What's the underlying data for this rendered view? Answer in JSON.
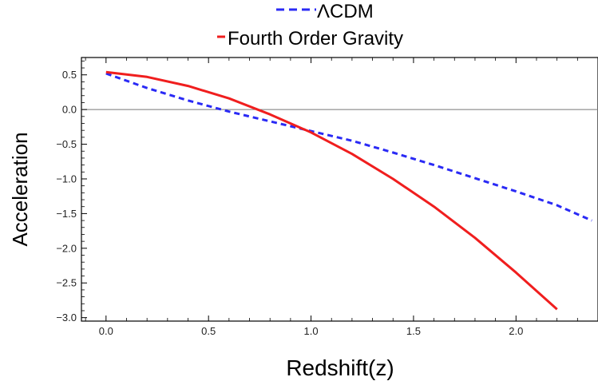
{
  "chart_data": {
    "type": "line",
    "title": "",
    "xlabel": "Redshift(z)",
    "ylabel": "Acceleration",
    "xlim": [
      -0.12,
      2.4
    ],
    "ylim": [
      -3.05,
      0.75
    ],
    "x_ticks": [
      "0.0",
      "0.5",
      "1.0",
      "1.5",
      "2.0"
    ],
    "y_ticks": [
      "0.5",
      "0.0",
      "-0.5",
      "-1.0",
      "-1.5",
      "-2.0",
      "-2.5",
      "-3.0"
    ],
    "legend_position": "top-center",
    "grid": false,
    "zero_line": true,
    "series": [
      {
        "name": "ΛCDM",
        "style": "dashed",
        "color": "#2a2af5",
        "x": [
          0.0,
          0.2,
          0.4,
          0.6,
          0.8,
          1.0,
          1.2,
          1.4,
          1.6,
          1.8,
          2.0,
          2.2,
          2.37
        ],
        "y": [
          0.52,
          0.31,
          0.13,
          -0.03,
          -0.17,
          -0.31,
          -0.45,
          -0.62,
          -0.8,
          -0.99,
          -1.18,
          -1.38,
          -1.6
        ]
      },
      {
        "name": "Fourth Order Gravity",
        "style": "solid",
        "color": "#f01e1e",
        "x": [
          0.0,
          0.2,
          0.4,
          0.6,
          0.8,
          1.0,
          1.2,
          1.4,
          1.6,
          1.8,
          2.0,
          2.2
        ],
        "y": [
          0.54,
          0.47,
          0.34,
          0.16,
          -0.07,
          -0.33,
          -0.64,
          -1.0,
          -1.4,
          -1.85,
          -2.35,
          -2.88
        ]
      }
    ]
  }
}
